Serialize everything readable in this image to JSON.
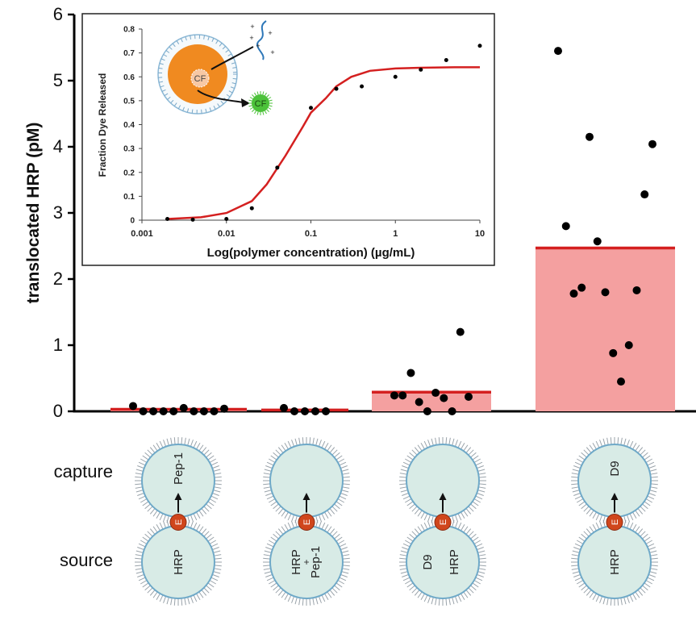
{
  "chart_data": [
    {
      "type": "bar",
      "title": "",
      "ylabel": "translocated HRP (pM)",
      "xlabel": "",
      "ylim": [
        0,
        6
      ],
      "yticks": [
        "0",
        "1",
        "2",
        "3",
        "4",
        "5",
        "6"
      ],
      "grid": false,
      "bar_color": "#f4a0a0",
      "mean_line_color": "#d42020",
      "point_color": "#000000",
      "groups": [
        {
          "capture_label": "Pep-1",
          "source_label": "HRP",
          "mean": 0.03,
          "points": [
            0.08,
            0.0,
            0.0,
            0.0,
            0.0,
            0.05,
            0.0,
            0.0,
            0.0,
            0.04
          ]
        },
        {
          "capture_label": "",
          "source_label": "HRP + Pep-1",
          "mean": 0.02,
          "points": [
            0.05,
            0.0,
            0.0,
            0.0,
            0.0
          ]
        },
        {
          "capture_label": "",
          "source_label": "D9   HRP",
          "mean": 0.29,
          "points": [
            0.24,
            0.24,
            0.58,
            0.14,
            0.0,
            0.28,
            0.2,
            0.0,
            1.2,
            0.22
          ]
        },
        {
          "capture_label": "D9",
          "source_label": "HRP",
          "mean": 2.47,
          "points": [
            5.45,
            2.8,
            1.78,
            1.87,
            4.15,
            2.57,
            1.8,
            0.88,
            0.45,
            1.0,
            1.83,
            3.28,
            4.04
          ]
        }
      ]
    },
    {
      "type": "scatter",
      "title": "",
      "xlabel": "Log(polymer concentration) (µg/mL)",
      "ylabel": "Fraction Dye Released",
      "xscale": "log",
      "xlim": [
        0.001,
        10
      ],
      "ylim": [
        0,
        0.8
      ],
      "xticks": [
        "0.001",
        "0.01",
        "0.1",
        "1",
        "10"
      ],
      "yticks": [
        "0",
        "0.1",
        "0.2",
        "0.3",
        "0.4",
        "0.5",
        "0.6",
        "0.7",
        "0.8"
      ],
      "point_color": "#000000",
      "fit_color": "#d42020",
      "points": {
        "x": [
          0.002,
          0.004,
          0.01,
          0.02,
          0.04,
          0.1,
          0.2,
          0.4,
          1,
          2,
          4,
          10
        ],
        "y": [
          0.005,
          0.002,
          0.005,
          0.05,
          0.22,
          0.47,
          0.55,
          0.56,
          0.6,
          0.63,
          0.67,
          0.73
        ]
      },
      "fit": {
        "x": [
          0.002,
          0.005,
          0.01,
          0.02,
          0.03,
          0.05,
          0.08,
          0.1,
          0.15,
          0.2,
          0.3,
          0.5,
          1,
          2,
          5,
          10
        ],
        "y": [
          0.005,
          0.012,
          0.03,
          0.08,
          0.15,
          0.27,
          0.39,
          0.45,
          0.51,
          0.56,
          0.6,
          0.625,
          0.635,
          0.638,
          0.64,
          0.64
        ]
      },
      "inset_art": {
        "vesicle_label": "CF",
        "released_label": "CF",
        "vesicle_fill": "#f08a20",
        "released_fill": "#4cc23a"
      }
    }
  ],
  "row_labels": {
    "capture": "capture",
    "source": "source"
  },
  "vesicle_marker": "E",
  "vesicle_fill": "#d8ebe6",
  "vesicle_stroke": "#6fa9c8"
}
